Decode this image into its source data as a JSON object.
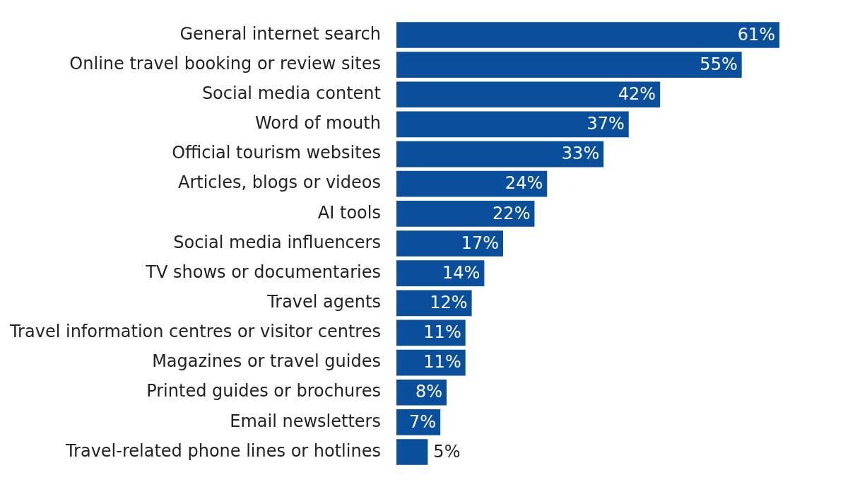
{
  "chart_data": {
    "type": "bar",
    "orientation": "horizontal",
    "categories": [
      "General internet search",
      "Online travel booking or review sites",
      "Social media content",
      "Word of mouth",
      "Official tourism websites",
      "Articles, blogs or videos",
      "AI tools",
      "Social media influencers",
      "TV shows or documentaries",
      "Travel agents",
      "Travel information centres or visitor centres",
      "Magazines or travel guides",
      "Printed guides or brochures",
      "Email newsletters",
      "Travel-related phone lines or hotlines"
    ],
    "values": [
      61,
      55,
      42,
      37,
      33,
      24,
      22,
      17,
      14,
      12,
      11,
      11,
      8,
      7,
      5
    ],
    "value_labels": [
      "61%",
      "55%",
      "42%",
      "37%",
      "33%",
      "24%",
      "22%",
      "17%",
      "14%",
      "12%",
      "11%",
      "11%",
      "8%",
      "7%",
      "5%"
    ],
    "color": "#0a4f9c"
  }
}
